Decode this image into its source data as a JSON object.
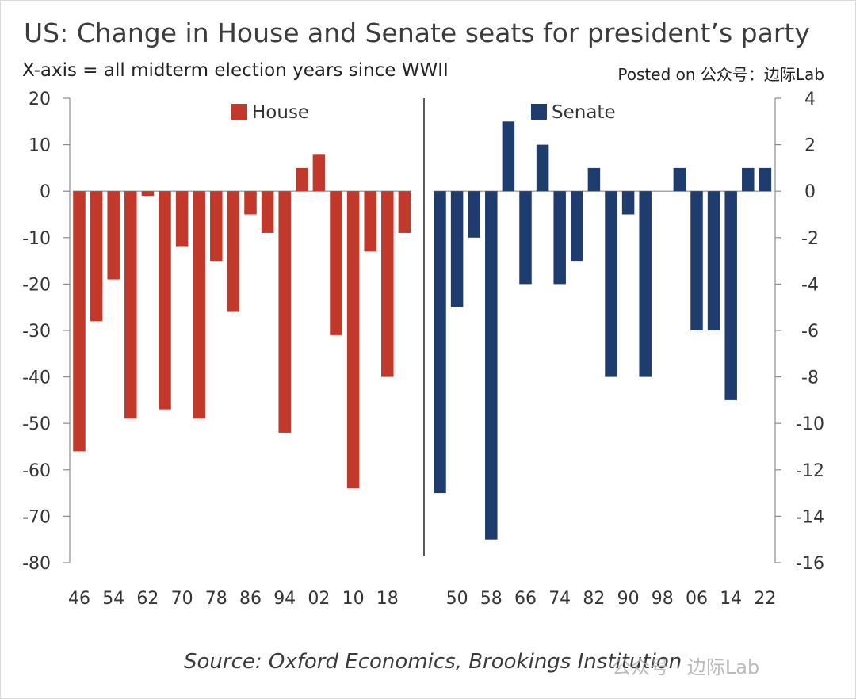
{
  "header": {
    "title": "US: Change in House and Senate seats for president’s party",
    "subtitle": "X-axis = all midterm election years since WWII",
    "posted": "Posted on 公众号：边际Lab"
  },
  "footer": {
    "source": "Source: Oxford Economics, Brookings Institution",
    "watermark": "公众号 · 边际Lab"
  },
  "colors": {
    "house": "#c0392b",
    "senate": "#1f3c6e",
    "axis": "#8c8c8c",
    "divider": "#333333",
    "text": "#333333"
  },
  "chart_data": [
    {
      "type": "bar",
      "name": "house",
      "legend": "House",
      "years": [
        "46",
        "50",
        "54",
        "58",
        "62",
        "66",
        "70",
        "74",
        "78",
        "82",
        "86",
        "90",
        "94",
        "98",
        "02",
        "06",
        "10",
        "14",
        "18",
        "22"
      ],
      "values": [
        -56,
        -28,
        -19,
        -49,
        -1,
        -47,
        -12,
        -49,
        -15,
        -26,
        -5,
        -9,
        -52,
        5,
        8,
        -31,
        -64,
        -13,
        -40,
        -9
      ],
      "tick_labels": [
        "46",
        "54",
        "62",
        "70",
        "78",
        "86",
        "94",
        "02",
        "10",
        "18"
      ],
      "ylim": [
        -80,
        20
      ],
      "yticks": [
        20,
        10,
        0,
        -10,
        -20,
        -30,
        -40,
        -50,
        -60,
        -70,
        -80
      ],
      "yaxis": "left"
    },
    {
      "type": "bar",
      "name": "senate",
      "legend": "Senate",
      "years": [
        "46",
        "50",
        "54",
        "58",
        "62",
        "66",
        "70",
        "74",
        "78",
        "82",
        "86",
        "90",
        "94",
        "98",
        "02",
        "06",
        "10",
        "14",
        "18",
        "22"
      ],
      "values": [
        -13,
        -5,
        -2,
        -15,
        3,
        -4,
        2,
        -4,
        -3,
        1,
        -8,
        -1,
        -8,
        0,
        1,
        -6,
        -6,
        -9,
        1,
        1
      ],
      "tick_labels": [
        "50",
        "58",
        "66",
        "74",
        "82",
        "90",
        "98",
        "06",
        "14",
        "22"
      ],
      "ylim": [
        -16,
        4
      ],
      "yticks": [
        4,
        2,
        0,
        -2,
        -4,
        -6,
        -8,
        -10,
        -12,
        -14,
        -16
      ],
      "yaxis": "right"
    }
  ]
}
